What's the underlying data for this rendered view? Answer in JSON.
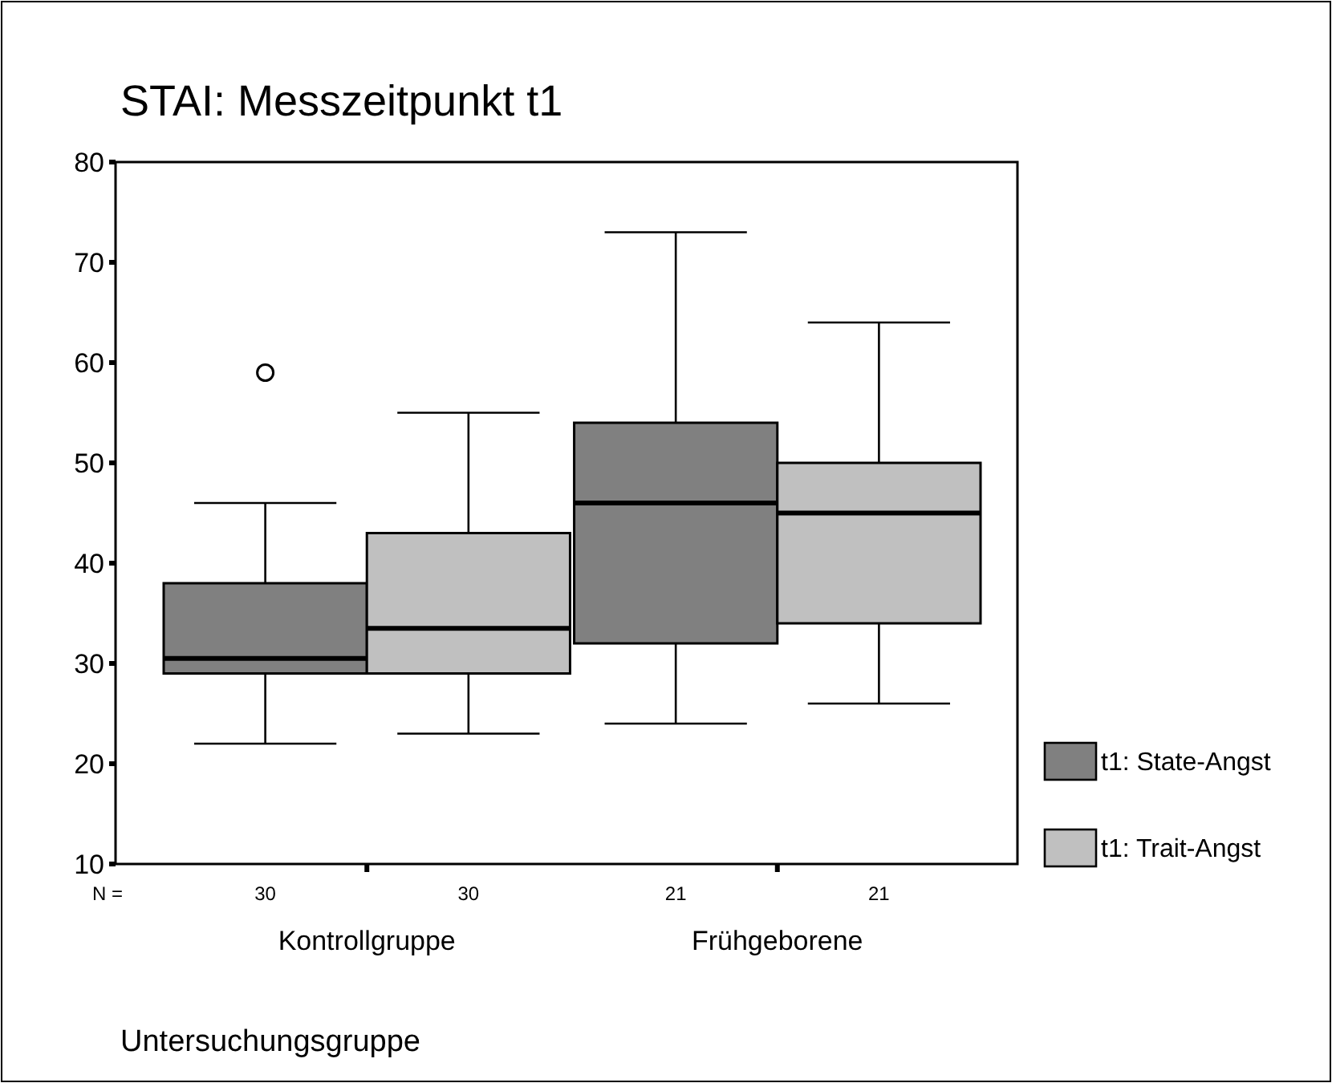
{
  "chart_data": {
    "type": "box",
    "title": "STAI: Messzeitpunkt t1",
    "xlabel": "Untersuchungsgruppe",
    "categories": [
      "Kontrollgruppe",
      "Frühgeborene"
    ],
    "ylim": [
      10,
      80
    ],
    "yticks": [
      10,
      20,
      30,
      40,
      50,
      60,
      70,
      80
    ],
    "grid": false,
    "legend": "right",
    "annotations": [
      "N =",
      "30",
      "30",
      "21",
      "21"
    ],
    "series": [
      {
        "name": "t1: State-Angst",
        "color": "#808080",
        "boxes": [
          {
            "low": 22,
            "q1": 29,
            "median": 30.5,
            "q3": 38,
            "high": 46,
            "outliers": [
              59
            ]
          },
          {
            "low": 24,
            "q1": 32,
            "median": 46,
            "q3": 54,
            "high": 73
          }
        ]
      },
      {
        "name": "t1: Trait-Angst",
        "color": "#c0c0c0",
        "boxes": [
          {
            "low": 23,
            "q1": 29,
            "median": 33.5,
            "q3": 43,
            "high": 55
          },
          {
            "low": 26,
            "q1": 34,
            "median": 45,
            "q3": 50,
            "high": 64
          }
        ]
      }
    ]
  }
}
